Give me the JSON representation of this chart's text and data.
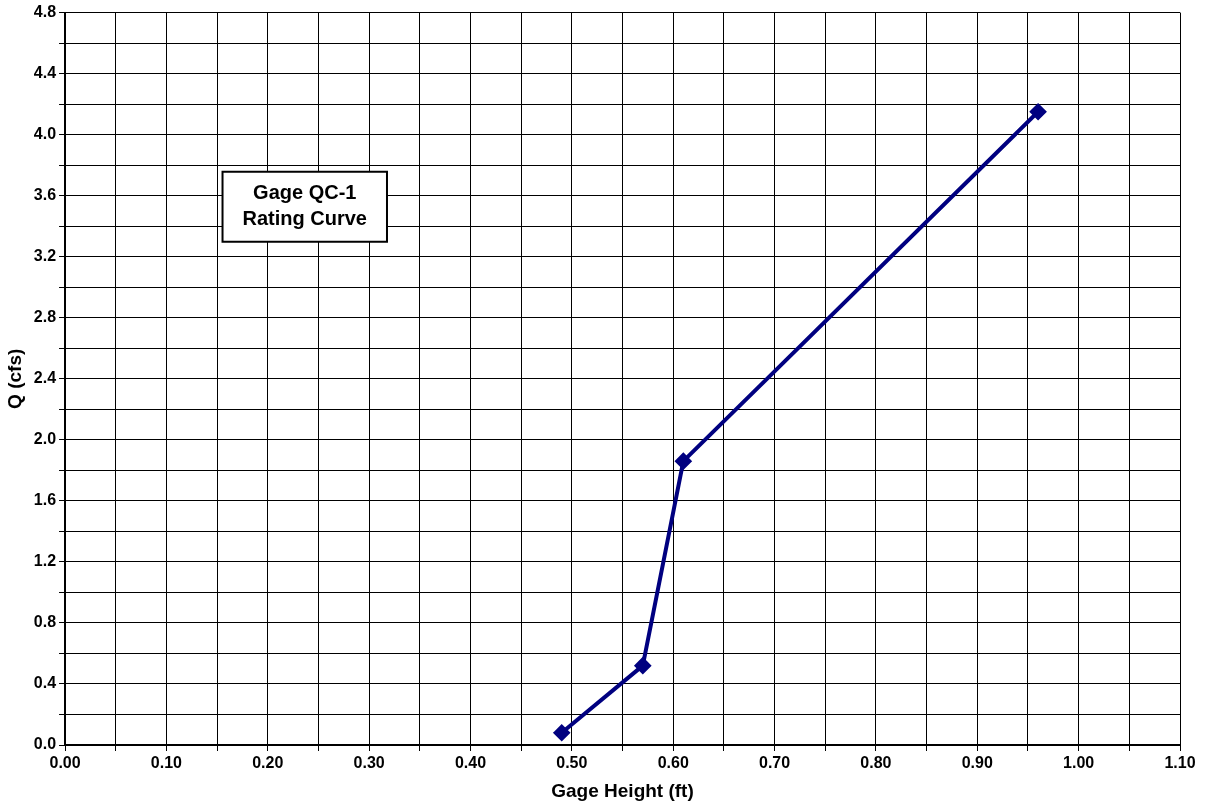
{
  "chart_data": {
    "type": "line",
    "title": "Gage QC-1\nRating Curve",
    "xlabel": "Gage Height (ft)",
    "ylabel": "Q (cfs)",
    "x": [
      0.49,
      0.57,
      0.61,
      0.96
    ],
    "series": [
      {
        "color": "#000080",
        "values": [
          0.08,
          0.52,
          1.86,
          4.15
        ]
      }
    ],
    "xlim": [
      0,
      1.1
    ],
    "xticks": [
      {
        "value": 0,
        "label": "0.00"
      },
      {
        "value": 0.05,
        "label": null
      },
      {
        "value": 0.1,
        "label": "0.10"
      },
      {
        "value": 0.15,
        "label": null
      },
      {
        "value": 0.2,
        "label": "0.20"
      },
      {
        "value": 0.25,
        "label": null
      },
      {
        "value": 0.3,
        "label": "0.30"
      },
      {
        "value": 0.35,
        "label": null
      },
      {
        "value": 0.4,
        "label": "0.40"
      },
      {
        "value": 0.45,
        "label": null
      },
      {
        "value": 0.5,
        "label": "0.50"
      },
      {
        "value": 0.55,
        "label": null
      },
      {
        "value": 0.6,
        "label": "0.60"
      },
      {
        "value": 0.65,
        "label": null
      },
      {
        "value": 0.7,
        "label": "0.70"
      },
      {
        "value": 0.75,
        "label": null
      },
      {
        "value": 0.8,
        "label": "0.80"
      },
      {
        "value": 0.85,
        "label": null
      },
      {
        "value": 0.9,
        "label": "0.90"
      },
      {
        "value": 0.95,
        "label": null
      },
      {
        "value": 1.0,
        "label": "1.00"
      },
      {
        "value": 1.05,
        "label": null
      },
      {
        "value": 1.1,
        "label": "1.10"
      }
    ],
    "ylim": [
      0,
      4.8
    ],
    "yticks": [
      {
        "value": 0,
        "label": "0.0"
      },
      {
        "value": 0.2,
        "label": null
      },
      {
        "value": 0.4,
        "label": "0.4"
      },
      {
        "value": 0.6,
        "label": null
      },
      {
        "value": 0.8,
        "label": "0.8"
      },
      {
        "value": 1.0,
        "label": null
      },
      {
        "value": 1.2,
        "label": "1.2"
      },
      {
        "value": 1.4,
        "label": null
      },
      {
        "value": 1.6,
        "label": "1.6"
      },
      {
        "value": 1.8,
        "label": null
      },
      {
        "value": 2.0,
        "label": "2.0"
      },
      {
        "value": 2.2,
        "label": null
      },
      {
        "value": 2.4,
        "label": "2.4"
      },
      {
        "value": 2.6,
        "label": null
      },
      {
        "value": 2.8,
        "label": "2.8"
      },
      {
        "value": 3.0,
        "label": null
      },
      {
        "value": 3.2,
        "label": "3.2"
      },
      {
        "value": 3.4,
        "label": null
      },
      {
        "value": 3.6,
        "label": "3.6"
      },
      {
        "value": 3.8,
        "label": null
      },
      {
        "value": 4.0,
        "label": "4.0"
      },
      {
        "value": 4.2,
        "label": null
      },
      {
        "value": 4.4,
        "label": "4.4"
      },
      {
        "value": 4.6,
        "label": null
      },
      {
        "value": 4.8,
        "label": "4.8"
      }
    ],
    "grid": true,
    "legend": false,
    "marker": "diamond",
    "line_style": "solid"
  }
}
